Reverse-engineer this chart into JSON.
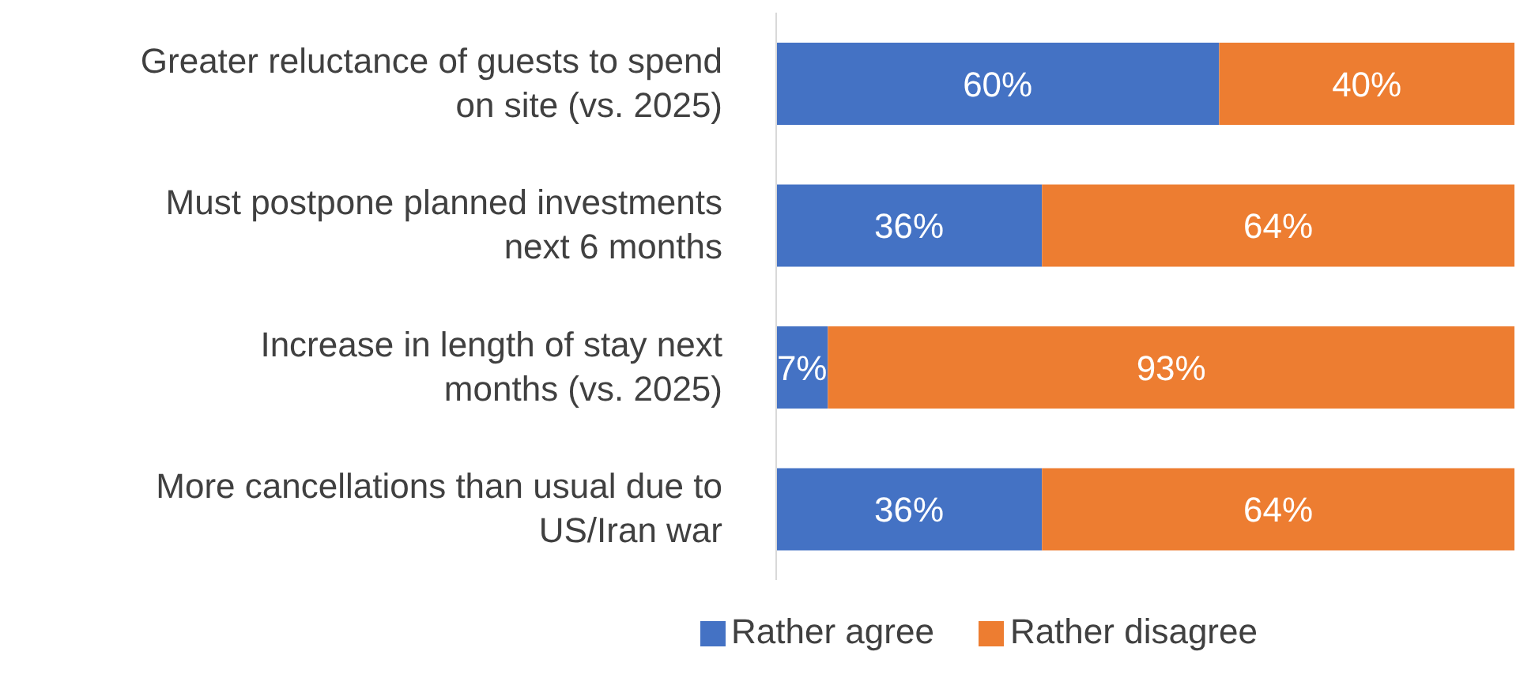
{
  "chart_data": {
    "type": "bar",
    "orientation": "horizontal",
    "stacked": true,
    "legend": "bottom",
    "categories": [
      "Greater reluctance of guests to spend on site (vs. 2025)",
      "Must postpone planned investments next 6 months",
      "Increase in length of stay next months (vs. 2025)",
      "More cancellations than usual due to US/Iran war"
    ],
    "series": [
      {
        "name": "Rather agree",
        "color": "#4472c4",
        "values": [
          60,
          36,
          7,
          36
        ],
        "value_labels": [
          "60%",
          "36%",
          "7%",
          "36%"
        ]
      },
      {
        "name": "Rather disagree",
        "color": "#ed7d31",
        "values": [
          40,
          64,
          93,
          64
        ],
        "value_labels": [
          "40%",
          "64%",
          "93%",
          "64%"
        ]
      }
    ]
  }
}
